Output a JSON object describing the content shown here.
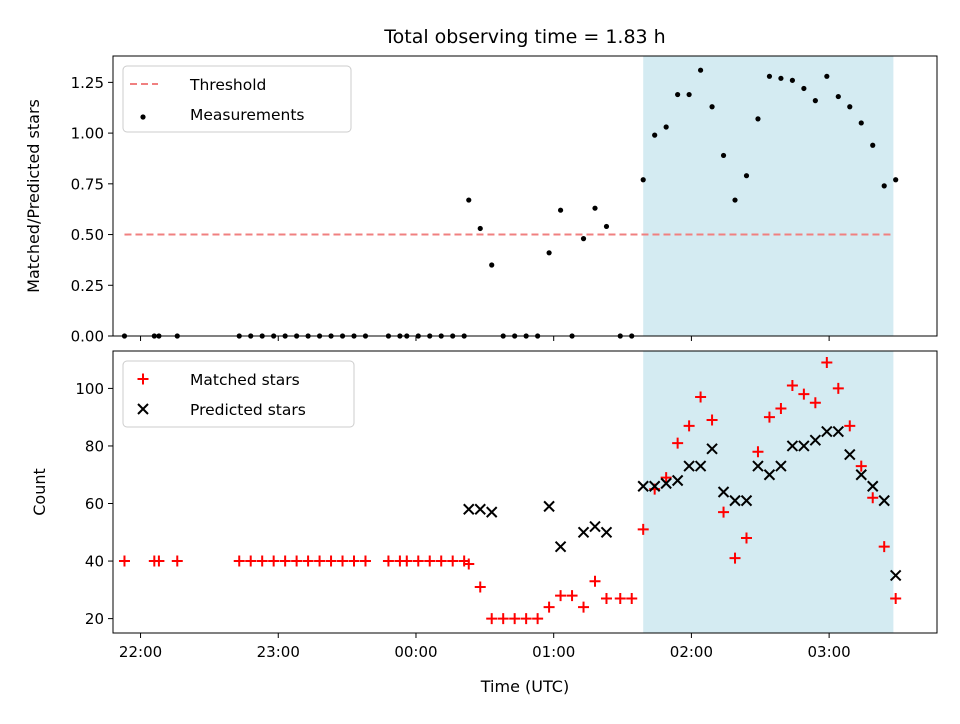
{
  "title": "Total observing time = 1.83 h",
  "colors": {
    "threshold": "#f08080",
    "measurement": "#000000",
    "matched": "#ff0000",
    "predicted": "#000000",
    "span": "#add8e6"
  },
  "chart_data": [
    {
      "type": "scatter",
      "panel": "top",
      "ylabel": "Matched/Predicted stars",
      "xlabel": "",
      "xlim": [
        "21:48",
        "03:47"
      ],
      "ylim": [
        0,
        1.38
      ],
      "yticks": [
        0,
        0.25,
        0.5,
        0.75,
        1.0,
        1.25
      ],
      "ytick_labels": [
        "0.00",
        "0.25",
        "0.50",
        "0.75",
        "1.00",
        "1.25"
      ],
      "highlight_span": [
        "01:39",
        "03:28"
      ],
      "legend_position": "upper-left",
      "legend": [
        "Threshold",
        "Measurements"
      ],
      "threshold": {
        "name": "Threshold",
        "y": 0.5,
        "x_range": [
          "21:53",
          "03:28"
        ],
        "style": "dashed"
      },
      "series": [
        {
          "name": "Measurements",
          "marker": "dot",
          "points": [
            [
              "21:53",
              0
            ],
            [
              "22:06",
              0
            ],
            [
              "22:08",
              0
            ],
            [
              "22:16",
              0
            ],
            [
              "22:43",
              0
            ],
            [
              "22:48",
              0
            ],
            [
              "22:53",
              0
            ],
            [
              "22:58",
              0
            ],
            [
              "23:03",
              0
            ],
            [
              "23:08",
              0
            ],
            [
              "23:13",
              0
            ],
            [
              "23:18",
              0
            ],
            [
              "23:23",
              0
            ],
            [
              "23:28",
              0
            ],
            [
              "23:33",
              0
            ],
            [
              "23:38",
              0
            ],
            [
              "23:48",
              0
            ],
            [
              "23:53",
              0
            ],
            [
              "23:56",
              0
            ],
            [
              "24:01",
              0
            ],
            [
              "24:06",
              0
            ],
            [
              "24:11",
              0
            ],
            [
              "24:16",
              0
            ],
            [
              "24:21",
              0
            ],
            [
              "24:23",
              0.67
            ],
            [
              "24:28",
              0.53
            ],
            [
              "24:33",
              0.35
            ],
            [
              "24:38",
              0
            ],
            [
              "24:43",
              0
            ],
            [
              "24:48",
              0
            ],
            [
              "24:53",
              0
            ],
            [
              "24:58",
              0.41
            ],
            [
              "25:03",
              0.62
            ],
            [
              "25:08",
              0
            ],
            [
              "25:13",
              0.48
            ],
            [
              "25:18",
              0.63
            ],
            [
              "25:23",
              0.54
            ],
            [
              "25:29",
              0
            ],
            [
              "25:34",
              0
            ],
            [
              "25:39",
              0.77
            ],
            [
              "25:44",
              0.99
            ],
            [
              "25:49",
              1.03
            ],
            [
              "25:54",
              1.19
            ],
            [
              "25:59",
              1.19
            ],
            [
              "26:04",
              1.31
            ],
            [
              "26:09",
              1.13
            ],
            [
              "26:14",
              0.89
            ],
            [
              "26:19",
              0.67
            ],
            [
              "26:24",
              0.79
            ],
            [
              "26:29",
              1.07
            ],
            [
              "26:34",
              1.28
            ],
            [
              "26:39",
              1.27
            ],
            [
              "26:44",
              1.26
            ],
            [
              "26:49",
              1.22
            ],
            [
              "26:54",
              1.16
            ],
            [
              "26:59",
              1.28
            ],
            [
              "27:04",
              1.18
            ],
            [
              "27:09",
              1.13
            ],
            [
              "27:14",
              1.05
            ],
            [
              "27:19",
              0.94
            ],
            [
              "27:24",
              0.74
            ],
            [
              "27:29",
              0.77
            ]
          ]
        }
      ]
    },
    {
      "type": "scatter",
      "panel": "bottom",
      "ylabel": "Count",
      "xlabel": "Time (UTC)",
      "xlim": [
        "21:48",
        "03:47"
      ],
      "ylim": [
        15,
        113
      ],
      "yticks": [
        20,
        40,
        60,
        80,
        100
      ],
      "ytick_labels": [
        "20",
        "40",
        "60",
        "80",
        "100"
      ],
      "xticks": [
        "22:00",
        "23:00",
        "00:00",
        "01:00",
        "02:00",
        "03:00"
      ],
      "xtick_labels": [
        "22:00",
        "23:00",
        "00:00",
        "01:00",
        "02:00",
        "03:00"
      ],
      "highlight_span": [
        "01:39",
        "03:28"
      ],
      "legend_position": "upper-left",
      "legend": [
        "Matched stars",
        "Predicted stars"
      ],
      "series": [
        {
          "name": "Matched stars",
          "marker": "plus",
          "points": [
            [
              "21:53",
              40
            ],
            [
              "22:06",
              40
            ],
            [
              "22:08",
              40
            ],
            [
              "22:16",
              40
            ],
            [
              "22:43",
              40
            ],
            [
              "22:48",
              40
            ],
            [
              "22:53",
              40
            ],
            [
              "22:58",
              40
            ],
            [
              "23:03",
              40
            ],
            [
              "23:08",
              40
            ],
            [
              "23:13",
              40
            ],
            [
              "23:18",
              40
            ],
            [
              "23:23",
              40
            ],
            [
              "23:28",
              40
            ],
            [
              "23:33",
              40
            ],
            [
              "23:38",
              40
            ],
            [
              "23:48",
              40
            ],
            [
              "23:53",
              40
            ],
            [
              "23:56",
              40
            ],
            [
              "24:01",
              40
            ],
            [
              "24:06",
              40
            ],
            [
              "24:11",
              40
            ],
            [
              "24:16",
              40
            ],
            [
              "24:21",
              40
            ],
            [
              "24:23",
              39
            ],
            [
              "24:28",
              31
            ],
            [
              "24:33",
              20
            ],
            [
              "24:38",
              20
            ],
            [
              "24:43",
              20
            ],
            [
              "24:48",
              20
            ],
            [
              "24:53",
              20
            ],
            [
              "24:58",
              24
            ],
            [
              "25:03",
              28
            ],
            [
              "25:08",
              28
            ],
            [
              "25:13",
              24
            ],
            [
              "25:18",
              33
            ],
            [
              "25:23",
              27
            ],
            [
              "25:29",
              27
            ],
            [
              "25:34",
              27
            ],
            [
              "25:39",
              51
            ],
            [
              "25:44",
              65
            ],
            [
              "25:49",
              69
            ],
            [
              "25:54",
              81
            ],
            [
              "25:59",
              87
            ],
            [
              "26:04",
              97
            ],
            [
              "26:09",
              89
            ],
            [
              "26:14",
              57
            ],
            [
              "26:19",
              41
            ],
            [
              "26:24",
              48
            ],
            [
              "26:29",
              78
            ],
            [
              "26:34",
              90
            ],
            [
              "26:39",
              93
            ],
            [
              "26:44",
              101
            ],
            [
              "26:49",
              98
            ],
            [
              "26:54",
              95
            ],
            [
              "26:59",
              109
            ],
            [
              "27:04",
              100
            ],
            [
              "27:09",
              87
            ],
            [
              "27:14",
              73
            ],
            [
              "27:19",
              62
            ],
            [
              "27:24",
              45
            ],
            [
              "27:29",
              27
            ]
          ]
        },
        {
          "name": "Predicted stars",
          "marker": "x",
          "points": [
            [
              "24:23",
              58
            ],
            [
              "24:28",
              58
            ],
            [
              "24:33",
              57
            ],
            [
              "24:58",
              59
            ],
            [
              "25:03",
              45
            ],
            [
              "25:13",
              50
            ],
            [
              "25:18",
              52
            ],
            [
              "25:23",
              50
            ],
            [
              "25:39",
              66
            ],
            [
              "25:44",
              66
            ],
            [
              "25:49",
              67
            ],
            [
              "25:54",
              68
            ],
            [
              "25:59",
              73
            ],
            [
              "26:04",
              73
            ],
            [
              "26:09",
              79
            ],
            [
              "26:14",
              64
            ],
            [
              "26:19",
              61
            ],
            [
              "26:24",
              61
            ],
            [
              "26:29",
              73
            ],
            [
              "26:34",
              70
            ],
            [
              "26:39",
              73
            ],
            [
              "26:44",
              80
            ],
            [
              "26:49",
              80
            ],
            [
              "26:54",
              82
            ],
            [
              "26:59",
              85
            ],
            [
              "27:04",
              85
            ],
            [
              "27:09",
              77
            ],
            [
              "27:14",
              70
            ],
            [
              "27:19",
              66
            ],
            [
              "27:24",
              61
            ],
            [
              "27:29",
              35
            ]
          ]
        }
      ]
    }
  ]
}
